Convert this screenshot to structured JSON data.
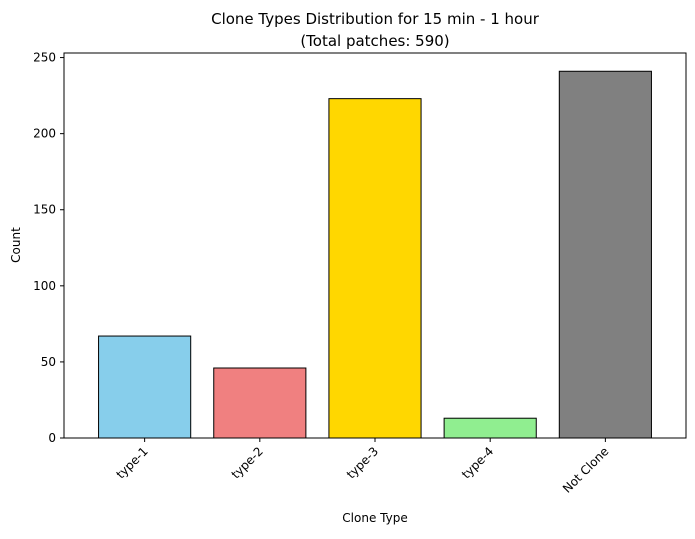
{
  "chart_data": {
    "type": "bar",
    "title": "Clone Types Distribution for 15 min - 1 hour",
    "subtitle": "(Total patches: 590)",
    "xlabel": "Clone Type",
    "ylabel": "Count",
    "categories": [
      "type-1",
      "type-2",
      "type-3",
      "type-4",
      "Not Clone"
    ],
    "values": [
      67,
      46,
      223,
      13,
      241
    ],
    "colors": [
      "#87ceeb",
      "#f08080",
      "#ffd700",
      "#90ee90",
      "#808080"
    ],
    "edge_color": "#000000",
    "ylim": [
      0,
      253
    ],
    "yticks": [
      0,
      50,
      100,
      150,
      200,
      250
    ],
    "grid": false,
    "legend": "none"
  }
}
